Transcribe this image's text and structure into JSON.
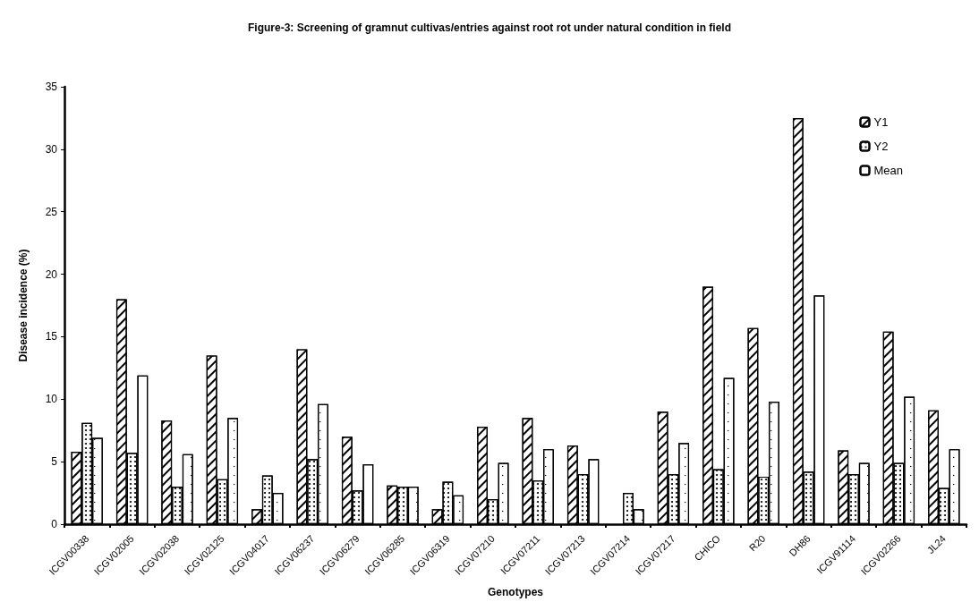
{
  "chart_data": {
    "type": "bar",
    "title": "Figure-3: Screening of gramnut cultivas/entries against root rot under natural condition in field",
    "xlabel": "Genotypes",
    "ylabel": "Disease incidence (%)",
    "categories": [
      "ICGV00338",
      "ICGV02005",
      "ICGV02038",
      "ICGV02125",
      "ICGV04017",
      "ICGV06237",
      "ICGV06279",
      "ICGV06285",
      "ICGV06319",
      "ICGV07210",
      "ICGV07211",
      "ICGV07213",
      "ICGV07214",
      "ICGV07217",
      "CHICO",
      "R20",
      "DH86",
      "ICGV91114",
      "ICGV02266",
      "JL24"
    ],
    "series": [
      {
        "name": "Y1",
        "color": "#ffffff",
        "values": [
          5.8,
          18.0,
          8.3,
          13.5,
          1.2,
          14.0,
          7.0,
          3.1,
          1.2,
          7.8,
          8.5,
          6.3,
          null,
          9.0,
          19.0,
          15.7,
          32.5,
          5.9,
          15.4,
          9.1
        ]
      },
      {
        "name": "Y2",
        "color": "#ffffff",
        "values": [
          8.1,
          5.7,
          3.0,
          3.6,
          3.9,
          5.2,
          2.7,
          3.0,
          3.4,
          2.0,
          3.5,
          4.0,
          2.5,
          4.0,
          4.4,
          3.8,
          4.2,
          4.0,
          4.9,
          2.9
        ]
      },
      {
        "name": "Mean",
        "color": "#ffffff",
        "values": [
          6.9,
          11.9,
          5.6,
          8.5,
          2.5,
          9.6,
          4.8,
          3.0,
          2.3,
          4.9,
          6.0,
          5.2,
          1.2,
          6.5,
          11.7,
          9.8,
          18.3,
          4.9,
          10.2,
          6.0
        ]
      }
    ],
    "ylim": [
      0,
      35
    ],
    "yticks": [
      0,
      5,
      10,
      15,
      20,
      25,
      30,
      35
    ],
    "grid": false,
    "legend": "top right"
  }
}
